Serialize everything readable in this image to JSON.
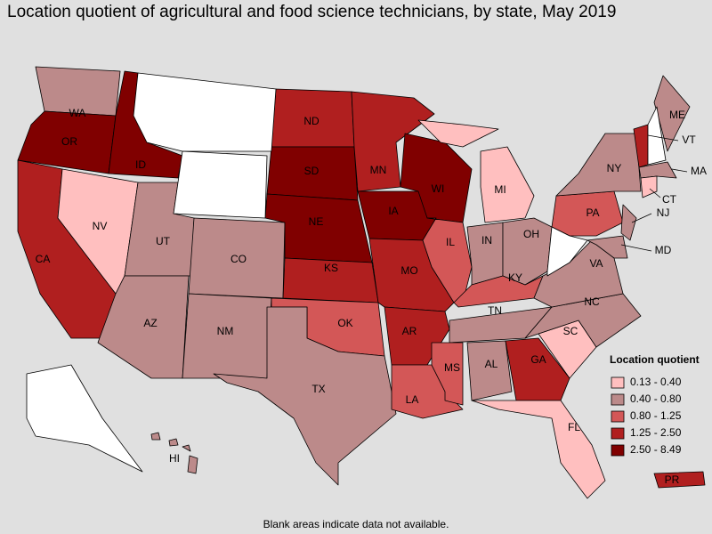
{
  "title": "Location quotient of agricultural and food science technicians, by state, May 2019",
  "legend": {
    "title": "Location quotient",
    "items": [
      {
        "label": "0.13 - 0.40",
        "color": "#ffbfbf"
      },
      {
        "label": "0.40 - 0.80",
        "color": "#bc8a8a"
      },
      {
        "label": "0.80 - 1.25",
        "color": "#d35757"
      },
      {
        "label": "1.25 - 2.50",
        "color": "#b01f1f"
      },
      {
        "label": "2.50 - 8.49",
        "color": "#800000"
      }
    ]
  },
  "states": [
    {
      "abbr": "WA",
      "range": "0.40 - 0.80"
    },
    {
      "abbr": "OR",
      "range": "2.50 - 8.49"
    },
    {
      "abbr": "ID",
      "range": "2.50 - 8.49"
    },
    {
      "abbr": "CA",
      "range": "1.25 - 2.50"
    },
    {
      "abbr": "NV",
      "range": "0.13 - 0.40"
    },
    {
      "abbr": "UT",
      "range": "0.40 - 0.80"
    },
    {
      "abbr": "AZ",
      "range": "0.40 - 0.80"
    },
    {
      "abbr": "CO",
      "range": "0.40 - 0.80"
    },
    {
      "abbr": "NM",
      "range": "0.40 - 0.80"
    },
    {
      "abbr": "ND",
      "range": "1.25 - 2.50"
    },
    {
      "abbr": "SD",
      "range": "2.50 - 8.49"
    },
    {
      "abbr": "NE",
      "range": "2.50 - 8.49"
    },
    {
      "abbr": "KS",
      "range": "1.25 - 2.50"
    },
    {
      "abbr": "OK",
      "range": "0.80 - 1.25"
    },
    {
      "abbr": "TX",
      "range": "0.40 - 0.80"
    },
    {
      "abbr": "MN",
      "range": "1.25 - 2.50"
    },
    {
      "abbr": "IA",
      "range": "2.50 - 8.49"
    },
    {
      "abbr": "MO",
      "range": "1.25 - 2.50"
    },
    {
      "abbr": "AR",
      "range": "1.25 - 2.50"
    },
    {
      "abbr": "LA",
      "range": "0.80 - 1.25"
    },
    {
      "abbr": "WI",
      "range": "2.50 - 8.49"
    },
    {
      "abbr": "IL",
      "range": "0.80 - 1.25"
    },
    {
      "abbr": "MI",
      "range": "0.13 - 0.40"
    },
    {
      "abbr": "IN",
      "range": "0.40 - 0.80"
    },
    {
      "abbr": "OH",
      "range": "0.40 - 0.80"
    },
    {
      "abbr": "KY",
      "range": "0.80 - 1.25"
    },
    {
      "abbr": "TN",
      "range": "0.40 - 0.80"
    },
    {
      "abbr": "MS",
      "range": "0.80 - 1.25"
    },
    {
      "abbr": "AL",
      "range": "0.40 - 0.80"
    },
    {
      "abbr": "GA",
      "range": "1.25 - 2.50"
    },
    {
      "abbr": "FL",
      "range": "0.13 - 0.40"
    },
    {
      "abbr": "SC",
      "range": "0.13 - 0.40"
    },
    {
      "abbr": "NC",
      "range": "0.40 - 0.80"
    },
    {
      "abbr": "VA",
      "range": "0.40 - 0.80"
    },
    {
      "abbr": "PA",
      "range": "0.80 - 1.25"
    },
    {
      "abbr": "NY",
      "range": "0.40 - 0.80"
    },
    {
      "abbr": "VT",
      "range": "1.25 - 2.50"
    },
    {
      "abbr": "ME",
      "range": "0.40 - 0.80"
    },
    {
      "abbr": "MA",
      "range": "0.40 - 0.80"
    },
    {
      "abbr": "CT",
      "range": "0.13 - 0.40"
    },
    {
      "abbr": "NJ",
      "range": "0.40 - 0.80"
    },
    {
      "abbr": "MD",
      "range": "0.40 - 0.80"
    },
    {
      "abbr": "HI",
      "range": "0.40 - 0.80"
    },
    {
      "abbr": "PR",
      "range": "1.25 - 2.50"
    }
  ],
  "footnote": "Blank areas indicate data not available."
}
